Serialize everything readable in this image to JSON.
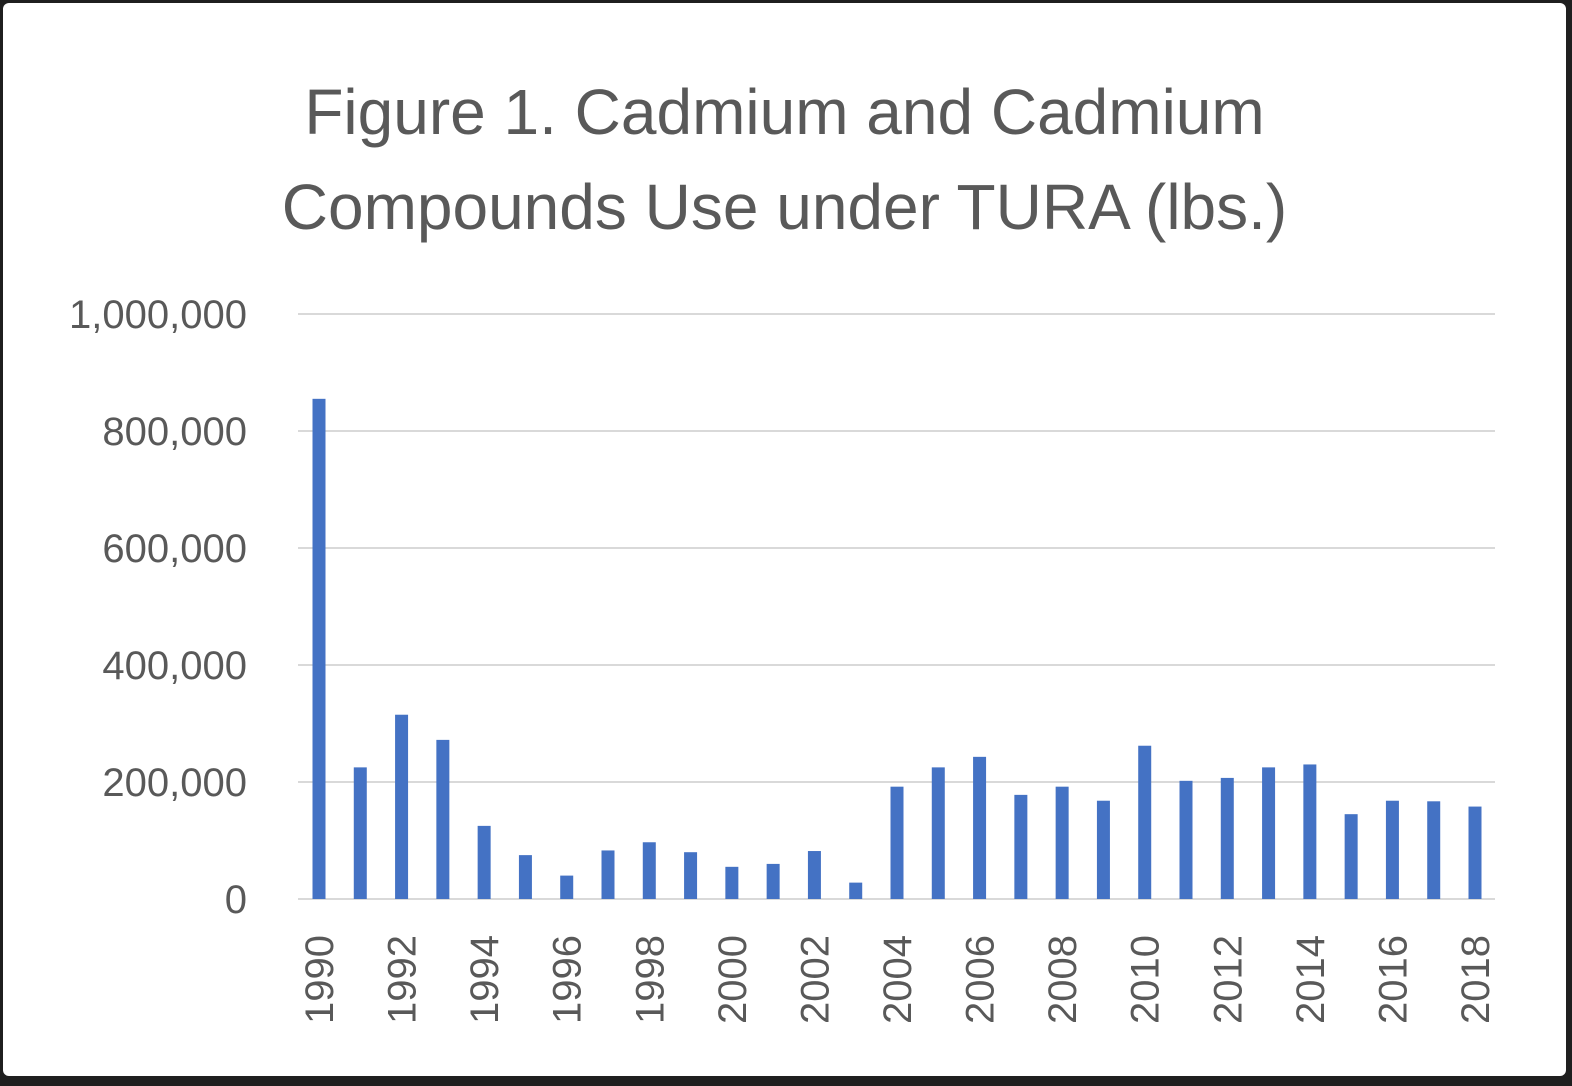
{
  "chart_data": {
    "type": "bar",
    "title_lines": [
      "Figure 1. Cadmium and Cadmium",
      "Compounds Use under TURA (lbs.)"
    ],
    "xlabel": "",
    "ylabel": "",
    "ylim": [
      0,
      1000000
    ],
    "yticks": [
      0,
      200000,
      400000,
      600000,
      800000,
      1000000
    ],
    "ytick_labels": [
      "0",
      "200,000",
      "400,000",
      "600,000",
      "800,000",
      "1,000,000"
    ],
    "grid": true,
    "legend": "none",
    "bar_color": "#4472c4",
    "categories": [
      "1990",
      "1991",
      "1992",
      "1993",
      "1994",
      "1995",
      "1996",
      "1997",
      "1998",
      "1999",
      "2000",
      "2001",
      "2002",
      "2003",
      "2004",
      "2005",
      "2006",
      "2007",
      "2008",
      "2009",
      "2010",
      "2011",
      "2012",
      "2013",
      "2014",
      "2015",
      "2016",
      "2017",
      "2018"
    ],
    "xtick_labels": [
      "1990",
      "1992",
      "1994",
      "1996",
      "1998",
      "2000",
      "2002",
      "2004",
      "2006",
      "2008",
      "2010",
      "2012",
      "2014",
      "2016",
      "2018"
    ],
    "values": [
      855000,
      225000,
      315000,
      272000,
      125000,
      75000,
      40000,
      83000,
      97000,
      80000,
      55000,
      60000,
      82000,
      28000,
      192000,
      225000,
      243000,
      178000,
      192000,
      168000,
      262000,
      202000,
      207000,
      225000,
      230000,
      145000,
      168000,
      167000,
      158000
    ]
  }
}
